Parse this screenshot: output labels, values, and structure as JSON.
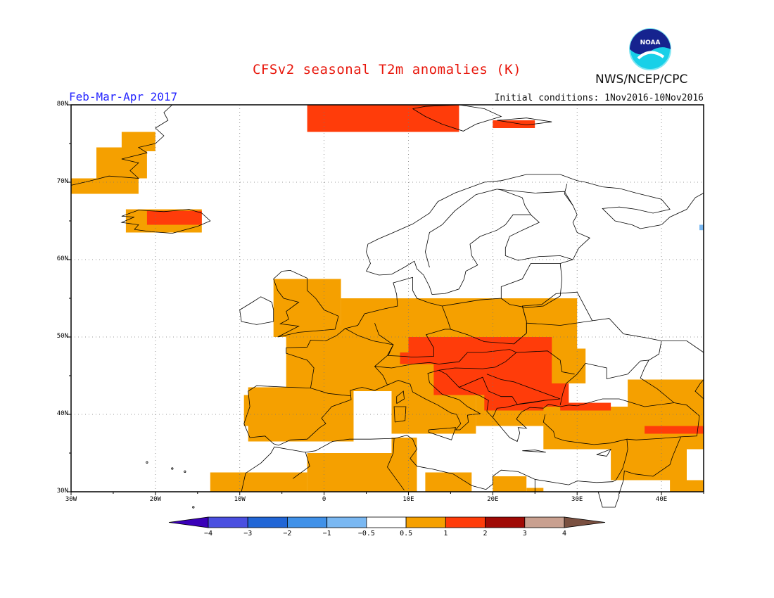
{
  "header": {
    "title": "CFSv2 seasonal T2m anomalies (K)",
    "season": "Feb-Mar-Apr 2017",
    "initial_conditions": "Initial conditions: 1Nov2016-10Nov2016",
    "agency": "NWS/NCEP/CPC",
    "logo_text": "NOAA"
  },
  "map": {
    "lat_labels": [
      "80N",
      "70N",
      "60N",
      "50N",
      "40N",
      "30N"
    ],
    "lon_labels": [
      "30W",
      "20W",
      "10W",
      "0",
      "10E",
      "20E",
      "30E",
      "40E"
    ],
    "extent": {
      "lon_min": -30,
      "lon_max": 45,
      "lat_min": 30,
      "lat_max": 80
    },
    "anomaly_regions": [
      {
        "name": "Iberia",
        "level": "0.5 to 1"
      },
      {
        "name": "France",
        "level": "0.5 to 1"
      },
      {
        "name": "Central Europe",
        "level": "0.5 to 1"
      },
      {
        "name": "Balkans / Danube basin",
        "level": "1 to 2"
      },
      {
        "name": "Iceland",
        "level": "1 to 2"
      },
      {
        "name": "Svalbard",
        "level": "1 to 2"
      },
      {
        "name": "North Africa",
        "level": "0.5 to 1"
      },
      {
        "name": "Turkey / Middle East",
        "level": "0.5 to 1"
      }
    ]
  },
  "colorbar": {
    "labels": [
      "-4",
      "-3",
      "-2",
      "-1",
      "-0.5",
      "0.5",
      "1",
      "2",
      "3",
      "4"
    ],
    "colors": [
      "#3a00b8",
      "#4a4fe0",
      "#2166d6",
      "#4091e8",
      "#7ab8f2",
      "#ffffff",
      "#f5a000",
      "#ff3c0a",
      "#a00a05",
      "#c9a090",
      "#7a5040"
    ]
  }
}
